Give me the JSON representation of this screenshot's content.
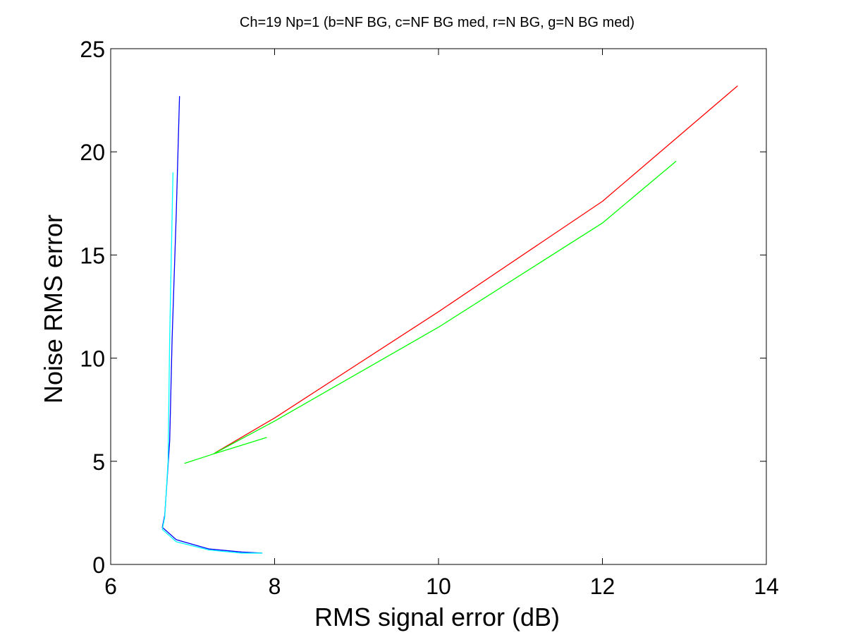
{
  "chart_data": {
    "type": "line",
    "title": "Ch=19 Np=1 (b=NF BG, c=NF BG med, r=N BG, g=N BG med)",
    "xlabel": "RMS signal error (dB)",
    "ylabel": "Noise RMS error",
    "xlim": [
      6,
      14
    ],
    "ylim": [
      0,
      25
    ],
    "xticks": [
      6,
      8,
      10,
      12,
      14
    ],
    "yticks": [
      0,
      5,
      10,
      15,
      20,
      25
    ],
    "grid": false,
    "series": [
      {
        "color": "#0000ff",
        "x": [
          7.85,
          7.6,
          7.2,
          6.8,
          6.63,
          6.66,
          6.72,
          6.75,
          6.8,
          6.84
        ],
        "y": [
          0.55,
          0.6,
          0.75,
          1.2,
          1.8,
          2.4,
          6.0,
          11.0,
          17.0,
          22.7
        ]
      },
      {
        "color": "#00ffff",
        "x": [
          7.85,
          7.6,
          7.2,
          6.8,
          6.63,
          6.66,
          6.7,
          6.72,
          6.76
        ],
        "y": [
          0.55,
          0.55,
          0.7,
          1.1,
          1.7,
          2.3,
          5.0,
          11.0,
          19.0
        ]
      },
      {
        "color": "#ff0000",
        "x": [
          7.27,
          8.0,
          10.0,
          12.0,
          13.65
        ],
        "y": [
          5.4,
          7.1,
          12.25,
          17.6,
          23.2
        ]
      },
      {
        "color": "#00ff00",
        "x": [
          6.9,
          7.25,
          7.9,
          7.25,
          8.0,
          10.0,
          12.0,
          12.9
        ],
        "y": [
          4.9,
          5.35,
          6.15,
          5.35,
          6.95,
          11.5,
          16.55,
          19.55
        ]
      }
    ]
  }
}
